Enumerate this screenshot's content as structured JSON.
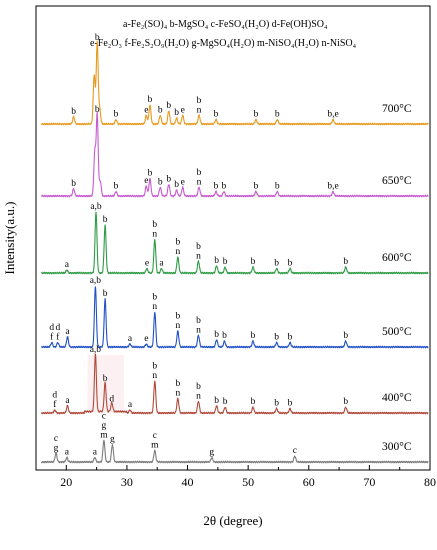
{
  "chart_data": {
    "type": "line",
    "xlabel": "2θ (degree)",
    "ylabel": "Intensity(a.u.)",
    "xlim": [
      15,
      80
    ],
    "xticks": [
      20,
      30,
      40,
      50,
      60,
      70,
      80
    ],
    "legend_lines": [
      "a-Fe₂(SO)₄ b-MgSO₄ c-FeSO₄(H₂O) d-Fe(OH)SO₄",
      "e-Fe₂O₃ f-Fe₂S₂O₉(H₂O) g-MgSO₄(H₂O) m-NiSO₄(H₂O) n-NiSO₄"
    ],
    "series": [
      {
        "name": "700°C",
        "color": "#E69A1E",
        "baseline": 0.0,
        "peaks": [
          {
            "x": 21.2,
            "h": 0.05,
            "labels": [
              "b"
            ]
          },
          {
            "x": 24.6,
            "h": 0.34,
            "labels": []
          },
          {
            "x": 25.1,
            "h": 0.56,
            "labels": [
              "b"
            ]
          },
          {
            "x": 25.5,
            "h": 0.1,
            "labels": []
          },
          {
            "x": 28.2,
            "h": 0.03,
            "labels": [
              "b"
            ]
          },
          {
            "x": 33.2,
            "h": 0.06,
            "labels": [
              "e"
            ]
          },
          {
            "x": 33.8,
            "h": 0.13,
            "labels": [
              "b"
            ]
          },
          {
            "x": 35.5,
            "h": 0.06,
            "labels": [
              "b"
            ]
          },
          {
            "x": 36.9,
            "h": 0.09,
            "labels": [
              "b"
            ]
          },
          {
            "x": 38.2,
            "h": 0.04,
            "labels": [
              "b"
            ]
          },
          {
            "x": 39.2,
            "h": 0.06,
            "labels": [
              "e"
            ]
          },
          {
            "x": 41.9,
            "h": 0.06,
            "labels": [
              "b",
              "n"
            ]
          },
          {
            "x": 44.7,
            "h": 0.03,
            "labels": [
              "b"
            ]
          },
          {
            "x": 51.3,
            "h": 0.03,
            "labels": [
              "b"
            ]
          },
          {
            "x": 54.8,
            "h": 0.03,
            "labels": [
              "b"
            ]
          },
          {
            "x": 64.0,
            "h": 0.03,
            "labels": [
              "b,e"
            ]
          }
        ]
      },
      {
        "name": "650°C",
        "color": "#C65BCF",
        "baseline": 0.0,
        "peaks": [
          {
            "x": 21.2,
            "h": 0.05,
            "labels": [
              "b"
            ]
          },
          {
            "x": 24.7,
            "h": 0.3,
            "labels": []
          },
          {
            "x": 25.1,
            "h": 0.56,
            "labels": [
              "b"
            ]
          },
          {
            "x": 25.6,
            "h": 0.1,
            "labels": []
          },
          {
            "x": 28.2,
            "h": 0.03,
            "labels": [
              "b"
            ]
          },
          {
            "x": 33.2,
            "h": 0.07,
            "labels": [
              "e"
            ]
          },
          {
            "x": 33.8,
            "h": 0.12,
            "labels": [
              "b"
            ]
          },
          {
            "x": 35.5,
            "h": 0.06,
            "labels": [
              "b"
            ]
          },
          {
            "x": 36.9,
            "h": 0.08,
            "labels": [
              "b"
            ]
          },
          {
            "x": 38.2,
            "h": 0.04,
            "labels": [
              "b"
            ]
          },
          {
            "x": 39.2,
            "h": 0.06,
            "labels": [
              "e"
            ]
          },
          {
            "x": 41.9,
            "h": 0.06,
            "labels": [
              "b",
              "n"
            ]
          },
          {
            "x": 44.7,
            "h": 0.03,
            "labels": [
              "b"
            ]
          },
          {
            "x": 46.0,
            "h": 0.03,
            "labels": [
              "b"
            ]
          },
          {
            "x": 51.3,
            "h": 0.03,
            "labels": [
              "b"
            ]
          },
          {
            "x": 54.8,
            "h": 0.03,
            "labels": [
              "b"
            ]
          },
          {
            "x": 64.0,
            "h": 0.03,
            "labels": [
              "b,e"
            ]
          }
        ]
      },
      {
        "name": "600°C",
        "color": "#2E9B45",
        "baseline": 0.0,
        "peaks": [
          {
            "x": 20.1,
            "h": 0.02,
            "labels": [
              "a"
            ]
          },
          {
            "x": 24.9,
            "h": 0.42,
            "labels": [
              "a,b"
            ]
          },
          {
            "x": 26.4,
            "h": 0.33,
            "labels": [
              "b"
            ]
          },
          {
            "x": 33.3,
            "h": 0.03,
            "labels": [
              "e"
            ]
          },
          {
            "x": 34.6,
            "h": 0.23,
            "labels": [
              "b",
              "n"
            ]
          },
          {
            "x": 35.7,
            "h": 0.03,
            "labels": [
              "a"
            ]
          },
          {
            "x": 38.4,
            "h": 0.11,
            "labels": [
              "b",
              "n"
            ]
          },
          {
            "x": 41.8,
            "h": 0.08,
            "labels": [
              "b",
              "n"
            ]
          },
          {
            "x": 44.8,
            "h": 0.05,
            "labels": [
              "b"
            ]
          },
          {
            "x": 46.2,
            "h": 0.04,
            "labels": [
              "b"
            ]
          },
          {
            "x": 50.8,
            "h": 0.04,
            "labels": [
              "b"
            ]
          },
          {
            "x": 54.7,
            "h": 0.03,
            "labels": [
              "b"
            ]
          },
          {
            "x": 56.9,
            "h": 0.03,
            "labels": [
              "b"
            ]
          },
          {
            "x": 66.1,
            "h": 0.04,
            "labels": [
              "b"
            ]
          }
        ]
      },
      {
        "name": "500°C",
        "color": "#2151C4",
        "baseline": 0.0,
        "peaks": [
          {
            "x": 17.6,
            "h": 0.03,
            "labels": [
              "d",
              "f"
            ]
          },
          {
            "x": 18.6,
            "h": 0.03,
            "labels": [
              "d",
              "f"
            ]
          },
          {
            "x": 20.2,
            "h": 0.07,
            "labels": [
              "a"
            ]
          },
          {
            "x": 24.8,
            "h": 0.42,
            "labels": [
              "a,b"
            ]
          },
          {
            "x": 26.4,
            "h": 0.33,
            "labels": [
              "b"
            ]
          },
          {
            "x": 30.5,
            "h": 0.02,
            "labels": [
              "a"
            ]
          },
          {
            "x": 33.2,
            "h": 0.02,
            "labels": [
              "e"
            ]
          },
          {
            "x": 34.6,
            "h": 0.24,
            "labels": [
              "b",
              "n"
            ]
          },
          {
            "x": 38.4,
            "h": 0.11,
            "labels": [
              "b",
              "n"
            ]
          },
          {
            "x": 41.8,
            "h": 0.08,
            "labels": [
              "b",
              "n"
            ]
          },
          {
            "x": 44.8,
            "h": 0.05,
            "labels": [
              "b"
            ]
          },
          {
            "x": 46.1,
            "h": 0.04,
            "labels": [
              "b"
            ]
          },
          {
            "x": 50.8,
            "h": 0.04,
            "labels": [
              "b"
            ]
          },
          {
            "x": 54.7,
            "h": 0.03,
            "labels": [
              "b"
            ]
          },
          {
            "x": 56.9,
            "h": 0.03,
            "labels": [
              "b"
            ]
          },
          {
            "x": 66.1,
            "h": 0.04,
            "labels": [
              "b"
            ]
          }
        ]
      },
      {
        "name": "400°C",
        "color": "#B04A3A",
        "baseline": 0.0,
        "peaks": [
          {
            "x": 18.1,
            "h": 0.02,
            "labels": [
              "d",
              "f"
            ]
          },
          {
            "x": 20.2,
            "h": 0.05,
            "labels": [
              "a"
            ]
          },
          {
            "x": 24.8,
            "h": 0.4,
            "labels": [
              "a,b"
            ]
          },
          {
            "x": 26.4,
            "h": 0.2,
            "labels": [
              "b"
            ]
          },
          {
            "x": 27.5,
            "h": 0.06,
            "labels": [
              "d"
            ]
          },
          {
            "x": 30.5,
            "h": 0.02,
            "labels": [
              "a"
            ]
          },
          {
            "x": 34.6,
            "h": 0.22,
            "labels": [
              "b",
              "n"
            ]
          },
          {
            "x": 38.4,
            "h": 0.1,
            "labels": [
              "b",
              "n"
            ]
          },
          {
            "x": 41.8,
            "h": 0.08,
            "labels": [
              "b",
              "n"
            ]
          },
          {
            "x": 44.8,
            "h": 0.05,
            "labels": [
              "b"
            ]
          },
          {
            "x": 46.2,
            "h": 0.04,
            "labels": [
              "b"
            ]
          },
          {
            "x": 50.8,
            "h": 0.04,
            "labels": [
              "b"
            ]
          },
          {
            "x": 54.7,
            "h": 0.03,
            "labels": [
              "b"
            ]
          },
          {
            "x": 56.9,
            "h": 0.03,
            "labels": [
              "b"
            ]
          },
          {
            "x": 66.1,
            "h": 0.04,
            "labels": [
              "b"
            ]
          }
        ]
      },
      {
        "name": "300°C",
        "color": "#7C7C7C",
        "baseline": 0.0,
        "peaks": [
          {
            "x": 18.3,
            "h": 0.06,
            "labels": [
              "c",
              "g"
            ]
          },
          {
            "x": 20.1,
            "h": 0.03,
            "labels": [
              "a"
            ]
          },
          {
            "x": 24.7,
            "h": 0.03,
            "labels": [
              "a"
            ]
          },
          {
            "x": 26.2,
            "h": 0.15,
            "labels": [
              "c",
              "g",
              "m"
            ]
          },
          {
            "x": 27.6,
            "h": 0.12,
            "labels": [
              "g"
            ]
          },
          {
            "x": 34.6,
            "h": 0.08,
            "labels": [
              "c",
              "m"
            ]
          },
          {
            "x": 44.0,
            "h": 0.03,
            "labels": [
              "g"
            ]
          },
          {
            "x": 57.7,
            "h": 0.04,
            "labels": [
              "c"
            ]
          }
        ]
      }
    ]
  }
}
